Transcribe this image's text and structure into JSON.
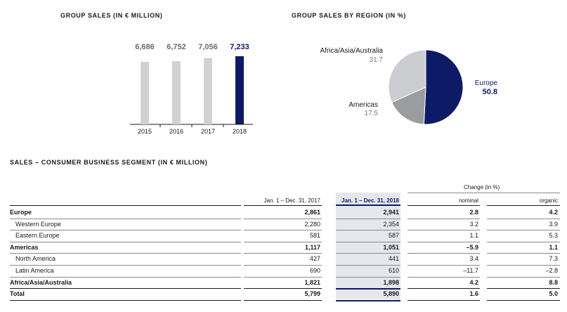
{
  "headings": {
    "group_sales": "GROUP SALES (IN € MILLION)",
    "by_region": "GROUP SALES BY REGION (IN %)",
    "segment": "SALES – CONSUMER BUSINESS SEGMENT (IN € MILLION)"
  },
  "colors": {
    "navy": "#0d1a66",
    "grey_bar": "#d0d1d4",
    "pie_light": "#cccdd0",
    "pie_mid": "#9b9c9f"
  },
  "chart_data": [
    {
      "type": "bar",
      "title": "GROUP SALES (IN € MILLION)",
      "categories": [
        "2015",
        "2016",
        "2017",
        "2018"
      ],
      "values": [
        6686,
        6752,
        7056,
        7233
      ],
      "value_labels": [
        "6,686",
        "6,752",
        "7,056",
        "7,233"
      ],
      "highlight_index": 3,
      "xlabel": "",
      "ylabel": "",
      "grid": false
    },
    {
      "type": "pie",
      "title": "GROUP SALES BY REGION (IN %)",
      "slices": [
        {
          "name": "Europe",
          "value": 50.8,
          "label": "50.8",
          "color": "#0d1a66"
        },
        {
          "name": "Americas",
          "value": 17.5,
          "label": "17.5",
          "color": "#9b9c9f"
        },
        {
          "name": "Africa/Asia/Australia",
          "value": 31.7,
          "label": "31.7",
          "color": "#cccdd0"
        }
      ]
    }
  ],
  "table": {
    "change_header": "Change (in %)",
    "columns": [
      "Jan. 1 – Dec. 31, 2017",
      "Jan. 1 – Dec. 31, 2018",
      "nominal",
      "organic"
    ],
    "rows": [
      {
        "label": "Europe",
        "bold": true,
        "values": [
          "2,861",
          "2,941",
          "2.8",
          "4.2"
        ]
      },
      {
        "label": "Western Europe",
        "bold": false,
        "values": [
          "2,280",
          "2,354",
          "3.2",
          "3.9"
        ]
      },
      {
        "label": "Eastern Europe",
        "bold": false,
        "values": [
          "581",
          "587",
          "1.1",
          "5.3"
        ]
      },
      {
        "label": "Americas",
        "bold": true,
        "values": [
          "1,117",
          "1,051",
          "–5.9",
          "1.1"
        ]
      },
      {
        "label": "North America",
        "bold": false,
        "values": [
          "427",
          "441",
          "3.4",
          "7.3"
        ]
      },
      {
        "label": "Latin America",
        "bold": false,
        "values": [
          "690",
          "610",
          "–11.7",
          "–2.8"
        ]
      },
      {
        "label": "Africa/Asia/Australia",
        "bold": true,
        "values": [
          "1,821",
          "1,898",
          "4.2",
          "8.8"
        ]
      },
      {
        "label": "Total",
        "bold": true,
        "values": [
          "5,799",
          "5,890",
          "1.6",
          "5.0"
        ]
      }
    ]
  }
}
